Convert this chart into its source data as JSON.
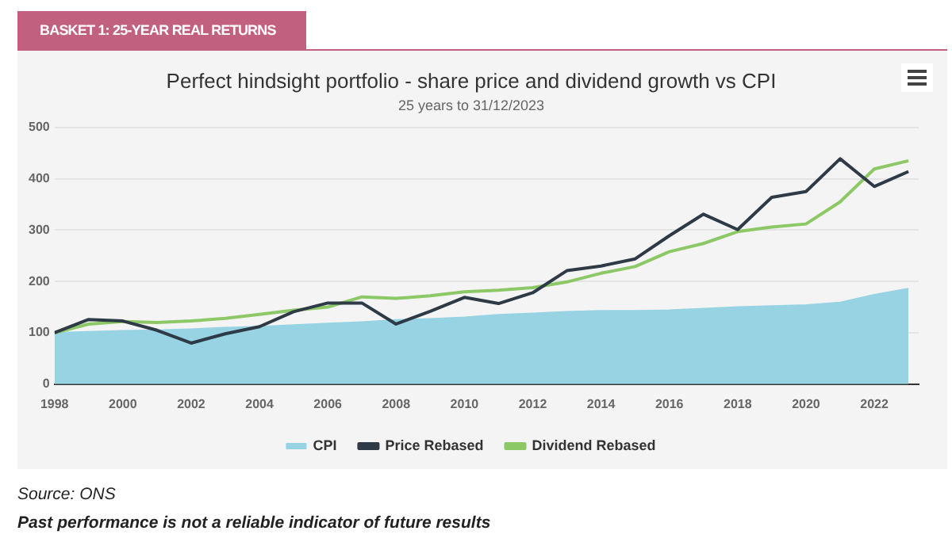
{
  "chart_data": {
    "type": "line",
    "title": "Perfect hindsight portfolio - share price and dividend growth vs CPI",
    "subtitle": "25 years to 31/12/2023",
    "annotations": [
      "BASKET 1: 25-YEAR REAL RETURNS",
      "Source: ONS",
      "Past performance is not a reliable indicator of future results"
    ],
    "x": [
      1998,
      1999,
      2000,
      2001,
      2002,
      2003,
      2004,
      2005,
      2006,
      2007,
      2008,
      2009,
      2010,
      2011,
      2012,
      2013,
      2014,
      2015,
      2016,
      2017,
      2018,
      2019,
      2020,
      2021,
      2022,
      2023
    ],
    "series": [
      {
        "name": "CPI",
        "type": "area",
        "color": "#97d3e3",
        "values": [
          100,
          102,
          104,
          105,
          107,
          110,
          112,
          115,
          118,
          121,
          125,
          127,
          130,
          135,
          138,
          141,
          143,
          143,
          144,
          147,
          150,
          152,
          154,
          159,
          174,
          186
        ]
      },
      {
        "name": "Price Rebased",
        "color": "#2e3a46",
        "values": [
          100,
          126,
          123,
          105,
          80,
          98,
          112,
          141,
          158,
          158,
          117,
          142,
          169,
          157,
          178,
          221,
          230,
          244,
          289,
          331,
          301,
          364,
          375,
          439,
          385,
          414
        ]
      },
      {
        "name": "Dividend Rebased",
        "color": "#8cc866",
        "values": [
          100,
          117,
          122,
          120,
          123,
          128,
          136,
          144,
          150,
          170,
          167,
          172,
          180,
          183,
          188,
          199,
          216,
          229,
          258,
          274,
          297,
          306,
          312,
          355,
          419,
          435
        ]
      }
    ],
    "xlim": [
      1998,
      2023.3
    ],
    "xticks": [
      1998,
      2000,
      2002,
      2004,
      2006,
      2008,
      2010,
      2012,
      2014,
      2016,
      2018,
      2020,
      2022
    ],
    "ylim": [
      0,
      500
    ],
    "yticks": [
      0,
      100,
      200,
      300,
      400,
      500
    ],
    "grid": "y",
    "legend": "bottom",
    "marker": "none",
    "line_style": "solid"
  }
}
